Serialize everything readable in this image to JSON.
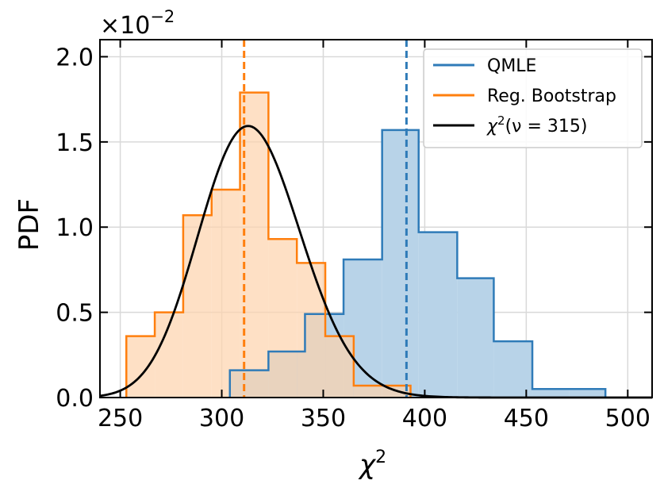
{
  "chart_data": {
    "type": "histogram",
    "title": "",
    "xlabel": "χ",
    "xlabel_superscript": "2",
    "ylabel": "PDF",
    "y_offset_base": "×10",
    "y_offset_exponent": "−2",
    "xlim": [
      240,
      512
    ],
    "ylim": [
      0,
      2.1
    ],
    "x_ticks": [
      250,
      300,
      350,
      400,
      450,
      500
    ],
    "y_ticks": [
      0.0,
      0.5,
      1.0,
      1.5,
      2.0
    ],
    "x_tick_labels": [
      "250",
      "300",
      "350",
      "400",
      "450",
      "500"
    ],
    "y_tick_labels": [
      "0.0",
      "0.5",
      "1.0",
      "1.5",
      "2.0"
    ],
    "grid": true,
    "legend_position": "top-right",
    "series": [
      {
        "name": "QMLE",
        "color": "#2f7bb8",
        "fill": "#b8d3e8",
        "bin_edges": [
          304,
          323,
          341,
          360,
          379,
          397,
          416,
          434,
          453,
          471,
          489
        ],
        "values": [
          0.16,
          0.27,
          0.49,
          0.81,
          1.57,
          0.97,
          0.7,
          0.33,
          0.05,
          0.05
        ],
        "mean": 391
      },
      {
        "name": "Reg. Bootstrap",
        "color": "#ff7f0e",
        "fill": "#fdd3ac",
        "bin_edges": [
          253,
          267,
          281,
          295,
          309,
          323,
          337,
          351,
          365,
          379,
          393
        ],
        "values": [
          0.36,
          0.5,
          1.07,
          1.22,
          1.79,
          0.93,
          0.79,
          0.36,
          0.07,
          0.07
        ],
        "mean": 311
      }
    ],
    "curve": {
      "name": "χ²(ν = 315)",
      "label_prefix": "χ",
      "label_exponent": "2",
      "label_suffix": "(ν = 315)",
      "color": "#000000",
      "dof": 315
    }
  }
}
